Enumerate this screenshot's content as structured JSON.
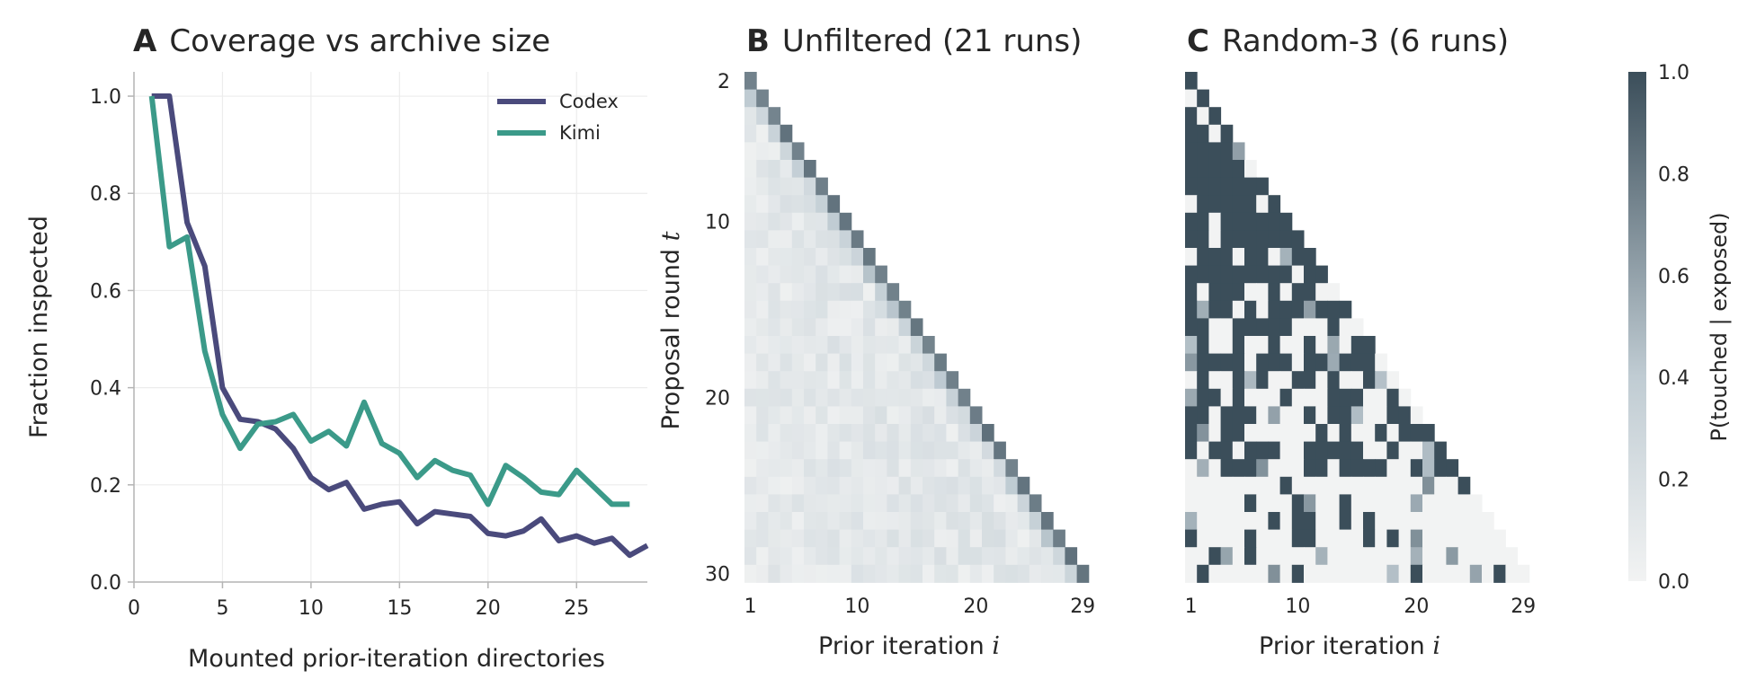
{
  "figure": {
    "panel_a": {
      "letter": "A",
      "title": "Coverage vs archive size"
    },
    "panel_b": {
      "letter": "B",
      "title": "Unfiltered (21 runs)"
    },
    "panel_c": {
      "letter": "C",
      "title": "Random-3 (6 runs)"
    },
    "colorbar_label": "P(touched | exposed)"
  },
  "colors": {
    "codex": "#4a4a7c",
    "kimi": "#3b9a89",
    "heat_low": "#f2f3f3",
    "heat_high": "#3b4e5a",
    "grid": "#ececec",
    "axis": "#b4b4b4"
  },
  "chart_data": [
    {
      "type": "line",
      "title": "Coverage vs archive size",
      "xlabel": "Mounted prior-iteration directories",
      "ylabel": "Fraction inspected",
      "xlim": [
        0,
        29
      ],
      "ylim": [
        0,
        1.05
      ],
      "xticks": [
        "0",
        "5",
        "10",
        "15",
        "20",
        "25"
      ],
      "yticks": [
        "0.0",
        "0.2",
        "0.4",
        "0.6",
        "0.8",
        "1.0"
      ],
      "grid": true,
      "legend": "top-right",
      "series": [
        {
          "name": "Codex",
          "x": [
            1,
            2,
            3,
            4,
            5,
            6,
            7,
            8,
            9,
            10,
            11,
            12,
            13,
            14,
            15,
            16,
            17,
            18,
            19,
            20,
            21,
            22,
            23,
            24,
            25,
            26,
            27,
            28,
            29
          ],
          "values": [
            1.0,
            1.0,
            0.74,
            0.65,
            0.4,
            0.335,
            0.33,
            0.315,
            0.275,
            0.215,
            0.19,
            0.205,
            0.15,
            0.16,
            0.165,
            0.12,
            0.145,
            0.14,
            0.135,
            0.1,
            0.095,
            0.105,
            0.13,
            0.085,
            0.095,
            0.08,
            0.09,
            0.055,
            0.075
          ]
        },
        {
          "name": "Kimi",
          "x": [
            1,
            2,
            3,
            4,
            5,
            6,
            7,
            8,
            9,
            10,
            11,
            12,
            13,
            14,
            15,
            16,
            17,
            18,
            19,
            20,
            21,
            22,
            23,
            24,
            25,
            26,
            27,
            28
          ],
          "values": [
            1.0,
            0.69,
            0.71,
            0.475,
            0.345,
            0.275,
            0.325,
            0.33,
            0.345,
            0.29,
            0.31,
            0.28,
            0.37,
            0.285,
            0.265,
            0.215,
            0.25,
            0.23,
            0.22,
            0.16,
            0.24,
            0.215,
            0.185,
            0.18,
            0.23,
            0.195,
            0.16,
            0.16
          ]
        }
      ]
    },
    {
      "type": "heatmap",
      "title": "Unfiltered (21 runs)",
      "xlabel": "Prior iteration i",
      "ylabel": "Proposal round t",
      "x_range": [
        1,
        29
      ],
      "y_range": [
        2,
        30
      ],
      "xticks": [
        "1",
        "10",
        "20",
        "29"
      ],
      "yticks": [
        "2",
        "10",
        "20",
        "30"
      ],
      "cell_rule": "value defined for i < t",
      "values_desc": "diagonal i = t-1 near 0.75-0.85; remaining cells mostly 0.05-0.3"
    },
    {
      "type": "heatmap",
      "title": "Random-3 (6 runs)",
      "xlabel": "Prior iteration i",
      "x_range": [
        1,
        29
      ],
      "y_range": [
        2,
        30
      ],
      "xticks": [
        "1",
        "10",
        "20",
        "29"
      ],
      "cell_rule": "value defined for i < t",
      "values_desc": "largely binary 0 or 1; dense upper region, sparse lower rows"
    },
    {
      "type": "colorbar",
      "label": "P(touched | exposed)",
      "range": [
        0,
        1
      ],
      "ticks": [
        "0.0",
        "0.2",
        "0.4",
        "0.6",
        "0.8",
        "1.0"
      ]
    }
  ]
}
